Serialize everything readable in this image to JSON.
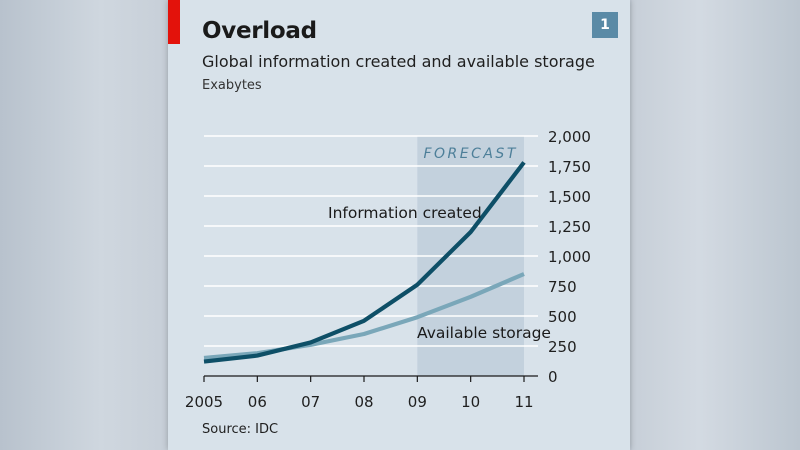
{
  "header": {
    "title": "Overload",
    "subtitle": "Global information created and available storage",
    "unit": "Exabytes",
    "badge": "1"
  },
  "footer": {
    "source": "Source: IDC"
  },
  "colors": {
    "information_created": "#0e4f67",
    "available_storage": "#7aa7b9",
    "forecast_band": "#c3d1dd",
    "forecast_text": "#4d7f99",
    "accent_red": "#e3120b"
  },
  "chart_data": {
    "type": "line",
    "x": [
      2005,
      2006,
      2007,
      2008,
      2009,
      2010,
      2011
    ],
    "xtick_labels": [
      "2005",
      "06",
      "07",
      "08",
      "09",
      "10",
      "11"
    ],
    "ylim": [
      0,
      2000
    ],
    "yticks": [
      0,
      250,
      500,
      750,
      1000,
      1250,
      1500,
      1750,
      2000
    ],
    "ytick_labels": [
      "0",
      "250",
      "500",
      "750",
      "1,000",
      "1,250",
      "1,500",
      "1,750",
      "2,000"
    ],
    "grid": true,
    "forecast": {
      "label": "FORECAST",
      "start": 2009,
      "end": 2011
    },
    "series": [
      {
        "name": "Information created",
        "values": [
          120,
          170,
          280,
          460,
          760,
          1200,
          1780
        ]
      },
      {
        "name": "Available storage",
        "values": [
          150,
          190,
          260,
          350,
          490,
          660,
          850
        ]
      }
    ]
  }
}
